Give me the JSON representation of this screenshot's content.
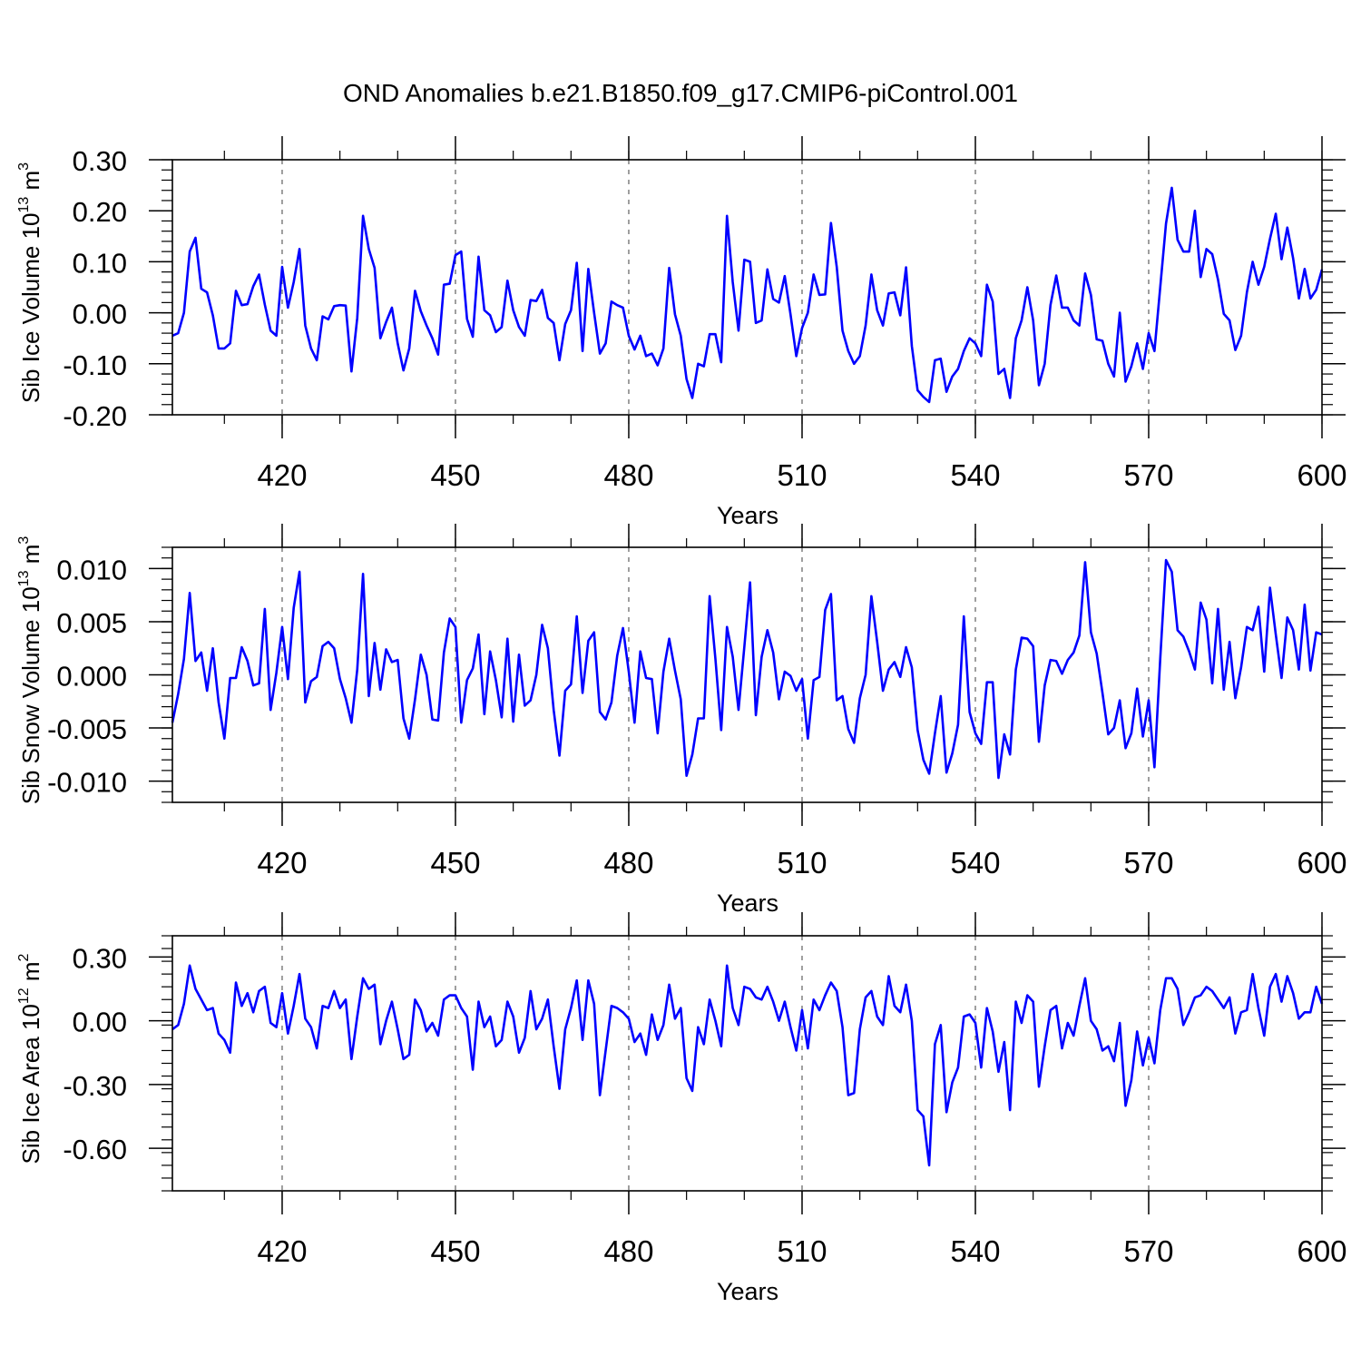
{
  "title": "OND Anomalies b.e21.B1850.f09_g17.CMIP6-piControl.001",
  "line_color": "#0000ff",
  "chart_data": [
    {
      "type": "line",
      "xlabel": "Years",
      "ylabel_main": "Sib Ice Volume 10",
      "ylabel_exp": "13",
      "ylabel_unit": " m",
      "ylabel_unit_exp": "3",
      "xlim": [
        401,
        600
      ],
      "ylim": [
        -0.2,
        0.3
      ],
      "xticks": [
        420,
        450,
        480,
        510,
        540,
        570,
        600
      ],
      "x_tick_labels": [
        "420",
        "450",
        "480",
        "510",
        "540",
        "570",
        "600"
      ],
      "yticks": [
        -0.2,
        -0.1,
        0.0,
        0.1,
        0.2,
        0.3
      ],
      "y_tick_labels": [
        "-0.20",
        "-0.10",
        "0.00",
        "0.10",
        "0.20",
        "0.30"
      ],
      "y_minor_step": 0.02,
      "x_minor_step": 10,
      "grid": "vertical-dashed",
      "x_start": 401,
      "values": [
        -0.045,
        -0.04,
        0.0,
        0.12,
        0.147,
        0.047,
        0.04,
        -0.005,
        -0.07,
        -0.07,
        -0.06,
        0.043,
        0.015,
        0.017,
        0.052,
        0.075,
        0.016,
        -0.035,
        -0.045,
        0.09,
        0.01,
        0.06,
        0.125,
        -0.025,
        -0.07,
        -0.093,
        -0.007,
        -0.013,
        0.013,
        0.015,
        0.014,
        -0.115,
        -0.01,
        0.19,
        0.125,
        0.088,
        -0.05,
        -0.018,
        0.01,
        -0.06,
        -0.113,
        -0.07,
        0.043,
        0.003,
        -0.025,
        -0.05,
        -0.082,
        0.055,
        0.057,
        0.113,
        0.12,
        -0.012,
        -0.047,
        0.11,
        0.005,
        -0.005,
        -0.038,
        -0.028,
        0.063,
        0.005,
        -0.028,
        -0.045,
        0.025,
        0.023,
        0.045,
        -0.01,
        -0.02,
        -0.093,
        -0.022,
        0.005,
        0.098,
        -0.075,
        0.086,
        0.0,
        -0.08,
        -0.06,
        0.022,
        0.015,
        0.01,
        -0.045,
        -0.072,
        -0.045,
        -0.085,
        -0.08,
        -0.103,
        -0.07,
        0.088,
        -0.003,
        -0.045,
        -0.13,
        -0.167,
        -0.1,
        -0.105,
        -0.042,
        -0.042,
        -0.097,
        0.19,
        0.06,
        -0.035,
        0.104,
        0.1,
        -0.02,
        -0.015,
        0.085,
        0.027,
        0.02,
        0.072,
        -0.003,
        -0.085,
        -0.03,
        0.0,
        0.075,
        0.035,
        0.036,
        0.176,
        0.09,
        -0.035,
        -0.075,
        -0.1,
        -0.085,
        -0.025,
        0.075,
        0.005,
        -0.025,
        0.038,
        0.04,
        -0.005,
        0.089,
        -0.065,
        -0.152,
        -0.165,
        -0.175,
        -0.093,
        -0.09,
        -0.155,
        -0.125,
        -0.11,
        -0.075,
        -0.05,
        -0.06,
        -0.085,
        0.055,
        0.022,
        -0.12,
        -0.11,
        -0.167,
        -0.05,
        -0.015,
        0.05,
        -0.015,
        -0.142,
        -0.1,
        0.015,
        0.073,
        0.01,
        0.01,
        -0.015,
        -0.025,
        0.077,
        0.035,
        -0.052,
        -0.055,
        -0.1,
        -0.125,
        0.0,
        -0.135,
        -0.105,
        -0.06,
        -0.11,
        -0.04,
        -0.075,
        0.05,
        0.175,
        0.245,
        0.143,
        0.12,
        0.12,
        0.2,
        0.07,
        0.125,
        0.115,
        0.065,
        -0.002,
        -0.015,
        -0.073,
        -0.045,
        0.04,
        0.1,
        0.055,
        0.09,
        0.145,
        0.194,
        0.105,
        0.167,
        0.107,
        0.028,
        0.086,
        0.028,
        0.045,
        0.085
      ]
    },
    {
      "type": "line",
      "xlabel": "Years",
      "ylabel_main": "Sib Snow Volume 10",
      "ylabel_exp": "13",
      "ylabel_unit": " m",
      "ylabel_unit_exp": "3",
      "xlim": [
        401,
        600
      ],
      "ylim": [
        -0.012,
        0.012
      ],
      "xticks": [
        420,
        450,
        480,
        510,
        540,
        570,
        600
      ],
      "x_tick_labels": [
        "420",
        "450",
        "480",
        "510",
        "540",
        "570",
        "600"
      ],
      "yticks": [
        -0.01,
        -0.005,
        0.0,
        0.005,
        0.01
      ],
      "y_tick_labels": [
        "-0.010",
        "-0.005",
        "0.000",
        "0.005",
        "0.010"
      ],
      "y_minor_step": 0.001,
      "x_minor_step": 10,
      "grid": "vertical-dashed",
      "x_start": 401,
      "values": [
        -0.0045,
        -0.0018,
        0.0015,
        0.0077,
        0.0013,
        0.0021,
        -0.0015,
        0.0025,
        -0.0026,
        -0.006,
        -0.0003,
        -0.0003,
        0.0026,
        0.0013,
        -0.001,
        -0.0008,
        0.0062,
        -0.0033,
        0.0002,
        0.0045,
        -0.0004,
        0.0063,
        0.0097,
        -0.0026,
        -0.0006,
        -0.0002,
        0.0027,
        0.0031,
        0.0025,
        -0.0004,
        -0.0022,
        -0.0045,
        0.0005,
        0.0095,
        -0.002,
        0.003,
        -0.0014,
        0.0024,
        0.0012,
        0.0014,
        -0.0041,
        -0.006,
        -0.0023,
        0.0019,
        0.0,
        -0.0042,
        -0.0043,
        0.0021,
        0.0053,
        0.0045,
        -0.0045,
        -0.0005,
        0.0006,
        0.0038,
        -0.0037,
        0.0022,
        -0.0005,
        -0.004,
        0.0034,
        -0.0044,
        0.0019,
        -0.0029,
        -0.0024,
        0.0,
        0.0047,
        0.0025,
        -0.0033,
        -0.0076,
        -0.0015,
        -0.0009,
        0.0055,
        -0.0017,
        0.0032,
        0.004,
        -0.0035,
        -0.0042,
        -0.0026,
        0.0018,
        0.0044,
        0.0003,
        -0.0045,
        0.0022,
        -0.0003,
        -0.0004,
        -0.0055,
        0.0003,
        0.0034,
        0.0004,
        -0.0023,
        -0.0095,
        -0.0075,
        -0.0041,
        -0.0041,
        0.0074,
        0.0015,
        -0.0052,
        0.0045,
        0.0017,
        -0.0033,
        0.0026,
        0.0087,
        -0.0038,
        0.0017,
        0.0042,
        0.0021,
        -0.0023,
        0.0003,
        -0.0001,
        -0.0015,
        -0.0004,
        -0.006,
        -0.0005,
        -0.0002,
        0.0061,
        0.0076,
        -0.0024,
        -0.002,
        -0.0051,
        -0.0064,
        -0.0022,
        0.0,
        0.0074,
        0.0031,
        -0.0015,
        0.0005,
        0.0012,
        -0.0002,
        0.0026,
        0.0007,
        -0.0052,
        -0.008,
        -0.0093,
        -0.0055,
        -0.002,
        -0.0092,
        -0.0074,
        -0.0047,
        0.0055,
        -0.0035,
        -0.0055,
        -0.0065,
        -0.0007,
        -0.0007,
        -0.0097,
        -0.0056,
        -0.0075,
        0.0005,
        0.0035,
        0.0034,
        0.0027,
        -0.0063,
        -0.001,
        0.0014,
        0.0013,
        0.0001,
        0.0014,
        0.0021,
        0.0037,
        0.0106,
        0.004,
        0.002,
        -0.0017,
        -0.0056,
        -0.005,
        -0.0024,
        -0.0069,
        -0.0055,
        -0.0013,
        -0.0058,
        -0.0024,
        -0.0087,
        0.0015,
        0.0108,
        0.0097,
        0.0042,
        0.0036,
        0.0022,
        0.0005,
        0.0068,
        0.0052,
        -0.0008,
        0.0062,
        -0.0014,
        0.0031,
        -0.0022,
        0.0007,
        0.0045,
        0.0042,
        0.0064,
        0.0003,
        0.0082,
        0.0038,
        -0.0003,
        0.0054,
        0.0042,
        0.0005,
        0.0066,
        0.0004,
        0.004,
        0.0038
      ]
    },
    {
      "type": "line",
      "xlabel": "Years",
      "ylabel_main": "Sib Ice Area 10",
      "ylabel_exp": "12",
      "ylabel_unit": " m",
      "ylabel_unit_exp": "2",
      "xlim": [
        401,
        600
      ],
      "ylim": [
        -0.8,
        0.4
      ],
      "xticks": [
        420,
        450,
        480,
        510,
        540,
        570,
        600
      ],
      "x_tick_labels": [
        "420",
        "450",
        "480",
        "510",
        "540",
        "570",
        "600"
      ],
      "yticks": [
        -0.6,
        -0.3,
        0.0,
        0.3
      ],
      "y_tick_labels": [
        "-0.60",
        "-0.30",
        "0.00",
        "0.30"
      ],
      "y_minor_step": 0.06,
      "x_minor_step": 10,
      "grid": "vertical-dashed",
      "x_start": 401,
      "values": [
        -0.04,
        -0.02,
        0.08,
        0.26,
        0.15,
        0.1,
        0.05,
        0.06,
        -0.06,
        -0.09,
        -0.15,
        0.18,
        0.07,
        0.13,
        0.04,
        0.14,
        0.16,
        -0.01,
        -0.03,
        0.13,
        -0.06,
        0.07,
        0.22,
        0.01,
        -0.03,
        -0.13,
        0.07,
        0.06,
        0.14,
        0.06,
        0.1,
        -0.18,
        0.02,
        0.2,
        0.15,
        0.17,
        -0.11,
        0.0,
        0.09,
        -0.04,
        -0.18,
        -0.16,
        0.1,
        0.05,
        -0.05,
        -0.01,
        -0.07,
        0.1,
        0.12,
        0.12,
        0.06,
        0.02,
        -0.23,
        0.09,
        -0.03,
        0.02,
        -0.12,
        -0.09,
        0.09,
        0.02,
        -0.15,
        -0.08,
        0.14,
        -0.04,
        0.01,
        0.1,
        -0.12,
        -0.32,
        -0.04,
        0.06,
        0.19,
        -0.09,
        0.19,
        0.08,
        -0.35,
        -0.14,
        0.07,
        0.06,
        0.04,
        0.01,
        -0.1,
        -0.06,
        -0.16,
        0.03,
        -0.09,
        -0.02,
        0.17,
        0.01,
        0.06,
        -0.27,
        -0.33,
        -0.03,
        -0.11,
        0.1,
        0.0,
        -0.12,
        0.26,
        0.06,
        -0.02,
        0.16,
        0.15,
        0.11,
        0.1,
        0.16,
        0.09,
        0.0,
        0.09,
        -0.03,
        -0.14,
        0.05,
        -0.13,
        0.1,
        0.05,
        0.12,
        0.18,
        0.14,
        -0.03,
        -0.35,
        -0.34,
        -0.04,
        0.11,
        0.14,
        0.02,
        -0.02,
        0.21,
        0.07,
        0.04,
        0.17,
        0.0,
        -0.42,
        -0.45,
        -0.68,
        -0.11,
        -0.02,
        -0.43,
        -0.29,
        -0.22,
        0.02,
        0.03,
        -0.01,
        -0.22,
        0.06,
        -0.05,
        -0.24,
        -0.1,
        -0.42,
        0.09,
        -0.01,
        0.12,
        0.09,
        -0.31,
        -0.12,
        0.05,
        0.07,
        -0.13,
        -0.01,
        -0.07,
        0.07,
        0.2,
        0.0,
        -0.04,
        -0.14,
        -0.12,
        -0.19,
        -0.01,
        -0.4,
        -0.28,
        -0.05,
        -0.21,
        -0.08,
        -0.2,
        0.05,
        0.2,
        0.2,
        0.15,
        -0.02,
        0.04,
        0.11,
        0.12,
        0.16,
        0.14,
        0.1,
        0.06,
        0.11,
        -0.06,
        0.04,
        0.05,
        0.22,
        0.06,
        -0.07,
        0.16,
        0.22,
        0.09,
        0.21,
        0.13,
        0.01,
        0.04,
        0.04,
        0.16,
        0.08
      ]
    }
  ]
}
